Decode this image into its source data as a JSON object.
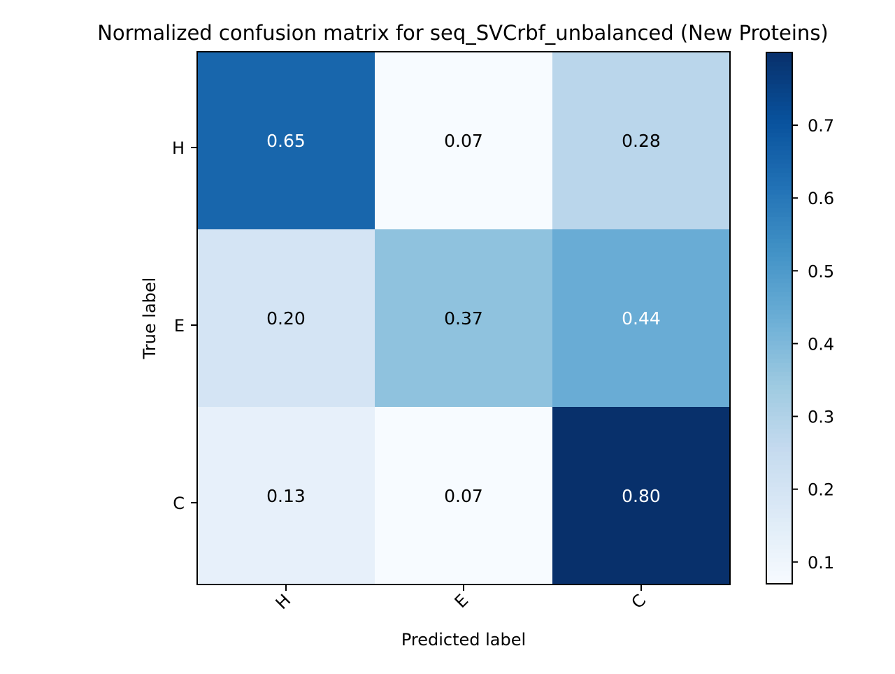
{
  "chart_data": {
    "type": "heatmap",
    "title": "Normalized confusion matrix for seq_SVCrbf_unbalanced (New Proteins)",
    "xlabel": "Predicted label",
    "ylabel": "True label",
    "x_categories": [
      "H",
      "E",
      "C"
    ],
    "y_categories": [
      "H",
      "E",
      "C"
    ],
    "values": [
      [
        0.65,
        0.07,
        0.28
      ],
      [
        0.2,
        0.37,
        0.44
      ],
      [
        0.13,
        0.07,
        0.8
      ]
    ],
    "value_labels": [
      [
        "0.65",
        "0.07",
        "0.28"
      ],
      [
        "0.20",
        "0.37",
        "0.44"
      ],
      [
        "0.13",
        "0.07",
        "0.80"
      ]
    ],
    "colormap": "Blues",
    "colorbar": {
      "vmin": 0.07,
      "vmax": 0.8,
      "ticks": [
        0.1,
        0.2,
        0.3,
        0.4,
        0.5,
        0.6,
        0.7
      ],
      "tick_labels": [
        "0.1",
        "0.2",
        "0.3",
        "0.4",
        "0.5",
        "0.6",
        "0.7"
      ]
    },
    "x_tick_rotation": "45 degrees",
    "grid": false
  }
}
